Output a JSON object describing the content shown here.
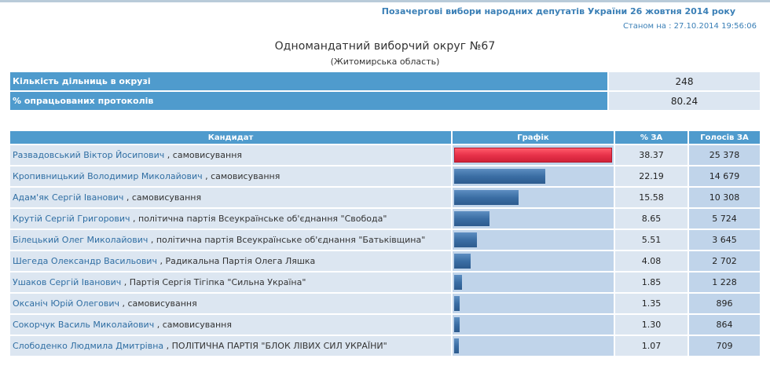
{
  "header": {
    "title": "Позачергові вибори народних депутатів України 26 жовтня 2014 року",
    "status": "Станом на : 27.10.2014 19:56:06"
  },
  "district": {
    "title": "Одномандатний виборчий округ №67",
    "region": "(Житомирська область)"
  },
  "summary": [
    {
      "label": "Кількість дільниць в окрузі",
      "value": "248"
    },
    {
      "label": "% опрацьованих протоколів",
      "value": "80.24"
    }
  ],
  "columns": {
    "candidate": "Кандидат",
    "graph": "Графік",
    "percent": "% ЗА",
    "votes": "Голосів ЗА"
  },
  "colors": {
    "header_blue": "#4f9bcd",
    "leader_bar": "#e8324a",
    "bar": "#3b6ea4"
  },
  "candidates": [
    {
      "name": "Развадовський Віктор Йосипович",
      "party": " , самовисування",
      "percent": "38.37",
      "votes": "25 378"
    },
    {
      "name": "Кропивницький Володимир Миколайович",
      "party": " , самовисування",
      "percent": "22.19",
      "votes": "14 679"
    },
    {
      "name": "Адам'як Сергій Іванович",
      "party": " , самовисування",
      "percent": "15.58",
      "votes": "10 308"
    },
    {
      "name": "Крутій Сергій Григорович",
      "party": " , політична партія Всеукраїнське об'єднання \"Свобода\"",
      "percent": "8.65",
      "votes": "5 724"
    },
    {
      "name": "Білецький Олег Миколайович",
      "party": " , політична партія Всеукраїнське об'єднання \"Батьківщина\"",
      "percent": "5.51",
      "votes": "3 645"
    },
    {
      "name": "Шегеда Олександр Васильович",
      "party": " , Радикальна Партія Олега Ляшка",
      "percent": "4.08",
      "votes": "2 702"
    },
    {
      "name": "Ушаков Сергій Іванович",
      "party": " , Партія Сергія Тігіпка \"Сильна Україна\"",
      "percent": "1.85",
      "votes": "1 228"
    },
    {
      "name": "Оксаніч Юрій Олегович",
      "party": " , самовисування",
      "percent": "1.35",
      "votes": "896"
    },
    {
      "name": "Сокорчук Василь Миколайович",
      "party": " , самовисування",
      "percent": "1.30",
      "votes": "864"
    },
    {
      "name": "Слободенко Людмила Дмитрівна",
      "party": " , ПОЛІТИЧНА ПАРТІЯ \"БЛОК ЛІВИХ СИЛ УКРАЇНИ\"",
      "percent": "1.07",
      "votes": "709"
    }
  ]
}
